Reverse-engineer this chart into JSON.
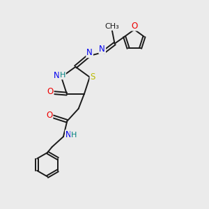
{
  "bg_color": "#ebebeb",
  "bond_color": "#1a1a1a",
  "atom_colors": {
    "N": "#0000ee",
    "O": "#ee0000",
    "S": "#bbbb00",
    "H": "#008080",
    "C": "#1a1a1a"
  },
  "figsize": [
    3.0,
    3.0
  ],
  "dpi": 100,
  "lw": 1.4,
  "fs": 8.5
}
